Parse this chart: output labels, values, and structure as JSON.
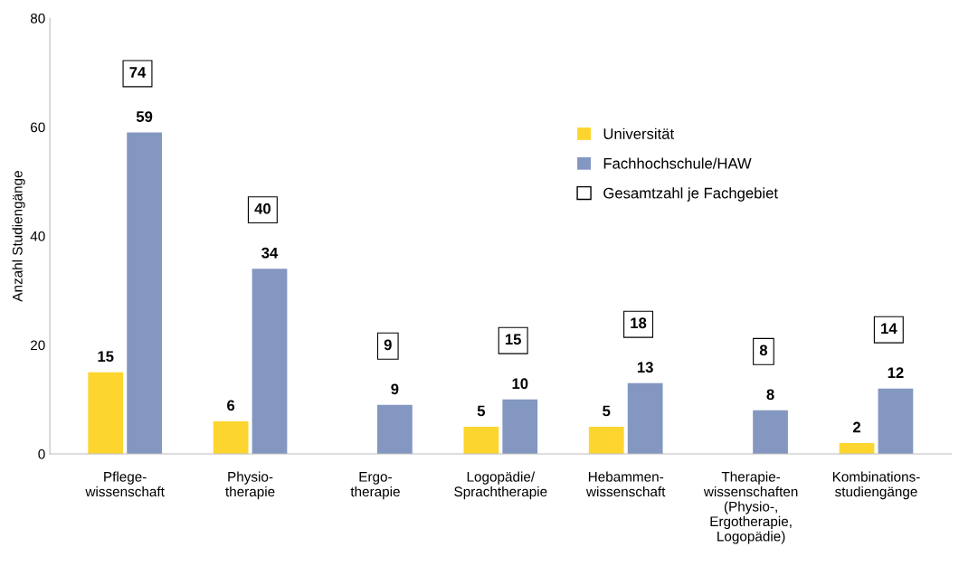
{
  "chart_data": {
    "type": "bar",
    "ylabel": "Anzahl Studiengänge",
    "categories": [
      "Pflege-\nwissenschaft",
      "Physio-\ntherapie",
      "Ergo-\ntherapie",
      "Logopädie/\nSprachtherapie",
      "Hebammen-\nwissenschaft",
      "Therapie-\nwissenschaften\n(Physio-,\nErgotherapie,\nLogopädie)",
      "Kombinations-\nstudiengänge"
    ],
    "series": [
      {
        "name": "Universität",
        "color": "#fdd52f",
        "values": [
          15,
          6,
          null,
          5,
          5,
          null,
          2
        ]
      },
      {
        "name": "Fachhochschule/HAW",
        "color": "#8497c1",
        "values": [
          59,
          34,
          9,
          10,
          13,
          8,
          12
        ]
      }
    ],
    "annotations": [
      "Gesamtzahl je Fachgebiet",
      "74",
      "40",
      "9",
      "15",
      "18",
      "8",
      "14"
    ],
    "ylim": [
      0,
      80
    ],
    "yticks": [
      0,
      20,
      40,
      60,
      80
    ],
    "data_labels": true,
    "grid": false,
    "legend": "top right"
  }
}
